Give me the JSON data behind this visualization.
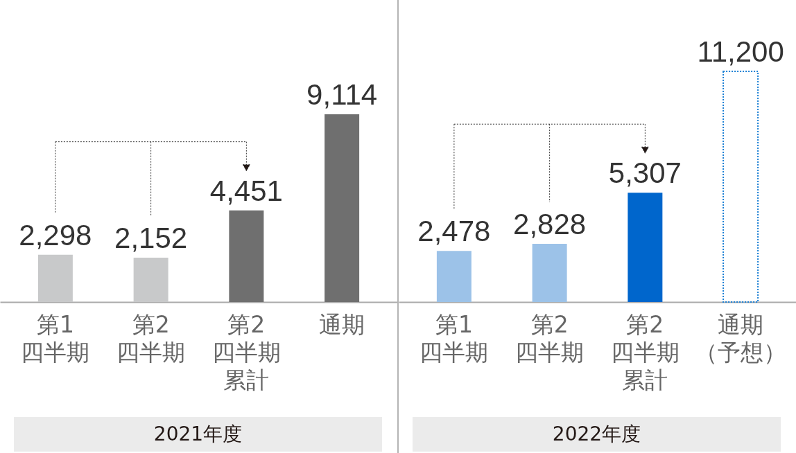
{
  "chart_data": [
    {
      "type": "bar",
      "xlabel": "2021年度",
      "categories": [
        "第1四半期",
        "第2四半期",
        "第2四半期累計",
        "通期"
      ],
      "values": [
        2298,
        2152,
        4451,
        9114
      ],
      "value_labels": [
        "2,298",
        "2,152",
        "4,451",
        "9,114"
      ],
      "colors": [
        "#c8c9ca",
        "#c8c9ca",
        "#6f6f6f",
        "#6f6f6f"
      ]
    },
    {
      "type": "bar",
      "xlabel": "2022年度",
      "categories": [
        "第1四半期",
        "第2四半期",
        "第2四半期累計",
        "通期（予想）"
      ],
      "series": [
        {
          "values": [
            2478,
            2828,
            5307,
            null
          ],
          "value_labels": [
            "2,478",
            "2,828",
            "5,307",
            null
          ],
          "colors": [
            "#9cc2e8",
            "#9cc2e8",
            "#0066cc",
            null
          ]
        },
        {
          "values": [
            null,
            null,
            null,
            11200
          ],
          "value_labels": [
            null,
            null,
            null,
            "11,200"
          ],
          "color": "#1a7fd4",
          "line_style": "dotted"
        }
      ]
    }
  ]
}
